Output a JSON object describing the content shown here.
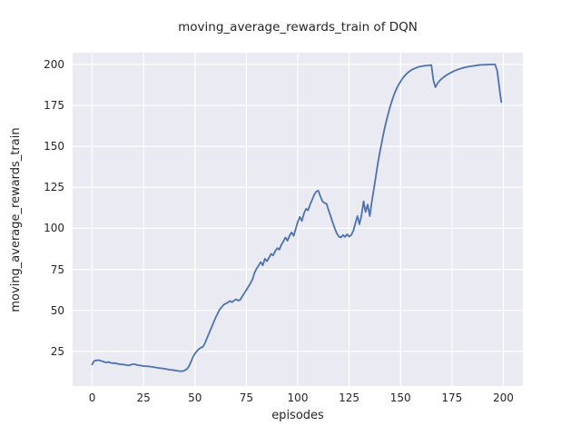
{
  "figure": {
    "title": "moving_average_rewards_train of DQN",
    "xlabel": "episodes",
    "ylabel": "moving_average_rewards_train",
    "colors": {
      "figure_bg": "#ffffff",
      "axes_bg": "#eaeaf2",
      "grid": "#ffffff",
      "line": "#4c72b0",
      "text": "#262626"
    }
  },
  "chart_data": {
    "type": "line",
    "title": "moving_average_rewards_train of DQN",
    "xlabel": "episodes",
    "ylabel": "moving_average_rewards_train",
    "legend": false,
    "grid": true,
    "x_note": "x value = episode index, 0 to 199, step 1",
    "xlim": [
      -9.5,
      209.5
    ],
    "ylim": [
      3.9,
      207.1
    ],
    "xticks": [
      0,
      25,
      50,
      75,
      100,
      125,
      150,
      175,
      200
    ],
    "yticks": [
      25,
      50,
      75,
      100,
      125,
      150,
      175,
      200
    ],
    "series": [
      {
        "name": "moving_average_rewards_train",
        "color": "#4c72b0",
        "values": [
          17.0,
          19.3,
          19.5,
          19.7,
          19.4,
          19.0,
          18.5,
          18.3,
          18.6,
          18.0,
          17.8,
          17.9,
          17.6,
          17.3,
          17.1,
          17.0,
          16.9,
          16.6,
          16.5,
          16.9,
          17.3,
          17.0,
          16.7,
          16.5,
          16.3,
          16.1,
          16.0,
          15.9,
          15.8,
          15.6,
          15.4,
          15.2,
          15.0,
          14.8,
          14.7,
          14.5,
          14.3,
          14.0,
          13.8,
          13.7,
          13.5,
          13.3,
          13.1,
          12.9,
          13.0,
          13.4,
          14.2,
          15.8,
          18.5,
          21.5,
          23.8,
          25.2,
          26.6,
          27.3,
          28.0,
          30.5,
          33.5,
          36.5,
          39.5,
          42.5,
          45.5,
          48.0,
          50.5,
          52.0,
          53.5,
          54.2,
          54.8,
          55.8,
          55.0,
          56.0,
          56.8,
          56.0,
          56.5,
          58.5,
          60.5,
          62.5,
          64.5,
          66.5,
          69.0,
          73.0,
          75.5,
          77.5,
          79.5,
          77.5,
          81.5,
          80.0,
          82.0,
          84.5,
          83.5,
          86.0,
          88.0,
          87.0,
          90.0,
          92.0,
          94.5,
          92.5,
          95.5,
          97.5,
          95.5,
          99.5,
          104.0,
          107.0,
          104.5,
          109.0,
          112.0,
          111.0,
          114.5,
          117.5,
          120.5,
          122.5,
          123.0,
          119.5,
          116.5,
          115.5,
          115.0,
          111.0,
          107.5,
          103.5,
          100.0,
          97.0,
          95.0,
          94.5,
          96.0,
          94.8,
          96.5,
          95.0,
          96.0,
          98.5,
          103.0,
          107.5,
          102.5,
          108.0,
          116.5,
          110.0,
          114.5,
          107.5,
          116.0,
          124.0,
          132.0,
          140.0,
          147.0,
          153.5,
          159.5,
          165.0,
          170.0,
          174.5,
          178.5,
          182.0,
          185.0,
          187.5,
          189.5,
          191.5,
          193.0,
          194.3,
          195.4,
          196.3,
          197.0,
          197.6,
          198.1,
          198.5,
          198.8,
          199.0,
          199.2,
          199.3,
          199.4,
          199.5,
          190.0,
          186.0,
          188.5,
          190.0,
          191.2,
          192.2,
          193.1,
          193.9,
          194.6,
          195.3,
          195.9,
          196.4,
          196.9,
          197.3,
          197.7,
          198.0,
          198.3,
          198.6,
          198.8,
          199.0,
          199.2,
          199.35,
          199.5,
          199.6,
          199.7,
          199.75,
          199.8,
          199.85,
          199.9,
          199.9,
          199.9,
          196.0,
          186.0,
          177.0
        ]
      }
    ]
  }
}
